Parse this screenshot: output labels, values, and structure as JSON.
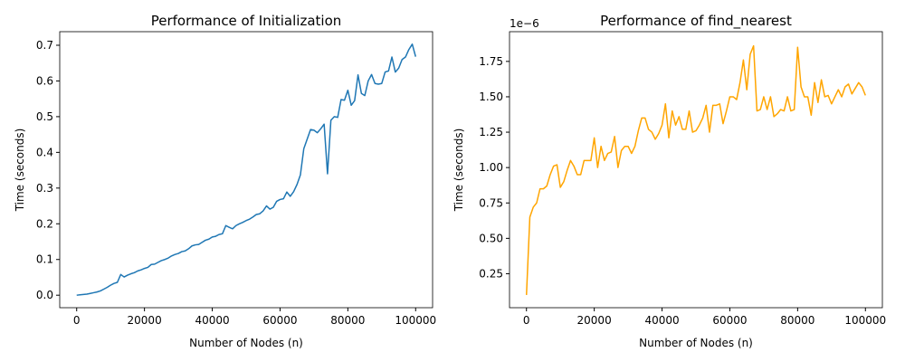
{
  "chart_data": [
    {
      "type": "line",
      "title": "Performance of Initialization",
      "xlabel": "Number of Nodes (n)",
      "ylabel": "Time (seconds)",
      "x": [
        0,
        1000,
        2000,
        3000,
        4000,
        5000,
        6000,
        7000,
        8000,
        9000,
        10000,
        11000,
        12000,
        13000,
        14000,
        15000,
        16000,
        17000,
        18000,
        19000,
        20000,
        21000,
        22000,
        23000,
        24000,
        25000,
        26000,
        27000,
        28000,
        29000,
        30000,
        31000,
        32000,
        33000,
        34000,
        35000,
        36000,
        37000,
        38000,
        39000,
        40000,
        41000,
        42000,
        43000,
        44000,
        45000,
        46000,
        47000,
        48000,
        49000,
        50000,
        51000,
        52000,
        53000,
        54000,
        55000,
        56000,
        57000,
        58000,
        59000,
        60000,
        61000,
        62000,
        63000,
        64000,
        65000,
        66000,
        67000,
        68000,
        69000,
        70000,
        71000,
        72000,
        73000,
        74000,
        75000,
        76000,
        77000,
        78000,
        79000,
        80000,
        81000,
        82000,
        83000,
        84000,
        85000,
        86000,
        87000,
        88000,
        89000,
        90000,
        91000,
        92000,
        93000,
        94000,
        95000,
        96000,
        97000,
        98000,
        99000,
        100000
      ],
      "series": [
        {
          "name": "Initialization",
          "color": "#1f77b4",
          "values": [
            0.0,
            0.001,
            0.002,
            0.003,
            0.005,
            0.007,
            0.009,
            0.012,
            0.017,
            0.022,
            0.028,
            0.033,
            0.036,
            0.058,
            0.051,
            0.056,
            0.06,
            0.063,
            0.068,
            0.071,
            0.075,
            0.078,
            0.086,
            0.087,
            0.092,
            0.097,
            0.1,
            0.104,
            0.11,
            0.114,
            0.117,
            0.122,
            0.124,
            0.13,
            0.138,
            0.141,
            0.142,
            0.148,
            0.154,
            0.157,
            0.163,
            0.165,
            0.17,
            0.172,
            0.195,
            0.19,
            0.186,
            0.195,
            0.2,
            0.204,
            0.209,
            0.213,
            0.219,
            0.226,
            0.228,
            0.236,
            0.25,
            0.241,
            0.246,
            0.263,
            0.268,
            0.27,
            0.289,
            0.277,
            0.29,
            0.31,
            0.337,
            0.41,
            0.437,
            0.464,
            0.462,
            0.455,
            0.466,
            0.479,
            0.34,
            0.49,
            0.5,
            0.498,
            0.548,
            0.546,
            0.574,
            0.532,
            0.545,
            0.617,
            0.565,
            0.559,
            0.6,
            0.618,
            0.593,
            0.591,
            0.593,
            0.625,
            0.628,
            0.667,
            0.625,
            0.636,
            0.66,
            0.667,
            0.688,
            0.703,
            0.668
          ]
        }
      ],
      "xlim": [
        -5000,
        105000
      ],
      "xticks": [
        0,
        20000,
        40000,
        60000,
        80000,
        100000
      ],
      "ylim": [
        -0.035,
        0.738
      ],
      "yticks": [
        {
          "value": 0,
          "label": "0.0"
        },
        0.1,
        0.2,
        0.3,
        0.4,
        0.5,
        0.6,
        0.7
      ]
    },
    {
      "type": "line",
      "title": "Performance of find_nearest",
      "xlabel": "Number of Nodes (n)",
      "ylabel": "Time (seconds)",
      "offset_text": "1e−6",
      "x": [
        0,
        1000,
        2000,
        3000,
        4000,
        5000,
        6000,
        7000,
        8000,
        9000,
        10000,
        11000,
        12000,
        13000,
        14000,
        15000,
        16000,
        17000,
        18000,
        19000,
        20000,
        21000,
        22000,
        23000,
        24000,
        25000,
        26000,
        27000,
        28000,
        29000,
        30000,
        31000,
        32000,
        33000,
        34000,
        35000,
        36000,
        37000,
        38000,
        39000,
        40000,
        41000,
        42000,
        43000,
        44000,
        45000,
        46000,
        47000,
        48000,
        49000,
        50000,
        51000,
        52000,
        53000,
        54000,
        55000,
        56000,
        57000,
        58000,
        59000,
        60000,
        61000,
        62000,
        63000,
        64000,
        65000,
        66000,
        67000,
        68000,
        69000,
        70000,
        71000,
        72000,
        73000,
        74000,
        75000,
        76000,
        77000,
        78000,
        79000,
        80000,
        81000,
        82000,
        83000,
        84000,
        85000,
        86000,
        87000,
        88000,
        89000,
        90000,
        91000,
        92000,
        93000,
        94000,
        95000,
        96000,
        97000,
        98000,
        99000,
        100000
      ],
      "series": [
        {
          "name": "find_nearest",
          "color": "#ffa500",
          "values": [
            0.1,
            0.65,
            0.72,
            0.75,
            0.85,
            0.85,
            0.87,
            0.95,
            1.01,
            1.02,
            0.86,
            0.9,
            0.98,
            1.05,
            1.01,
            0.95,
            0.95,
            1.05,
            1.05,
            1.05,
            1.21,
            1.0,
            1.15,
            1.05,
            1.1,
            1.11,
            1.22,
            1.0,
            1.12,
            1.15,
            1.15,
            1.1,
            1.15,
            1.26,
            1.35,
            1.35,
            1.27,
            1.25,
            1.2,
            1.24,
            1.3,
            1.45,
            1.21,
            1.4,
            1.3,
            1.36,
            1.27,
            1.27,
            1.4,
            1.25,
            1.26,
            1.3,
            1.35,
            1.44,
            1.25,
            1.44,
            1.44,
            1.45,
            1.31,
            1.4,
            1.5,
            1.5,
            1.48,
            1.6,
            1.76,
            1.55,
            1.8,
            1.86,
            1.4,
            1.41,
            1.5,
            1.41,
            1.5,
            1.36,
            1.38,
            1.41,
            1.4,
            1.5,
            1.4,
            1.41,
            1.85,
            1.57,
            1.5,
            1.5,
            1.37,
            1.6,
            1.46,
            1.62,
            1.5,
            1.51,
            1.45,
            1.5,
            1.55,
            1.5,
            1.57,
            1.59,
            1.52,
            1.56,
            1.6,
            1.57,
            1.51
          ]
        }
      ],
      "xlim": [
        -5000,
        105000
      ],
      "xticks": [
        0,
        20000,
        40000,
        60000,
        80000,
        100000
      ],
      "ylim": [
        0.01,
        1.96
      ],
      "yticks": [
        0.25,
        {
          "value": 0.5,
          "label": "0.50"
        },
        0.75,
        {
          "value": 1,
          "label": "1.00"
        },
        1.25,
        {
          "value": 1.5,
          "label": "1.50"
        },
        1.75
      ]
    }
  ]
}
